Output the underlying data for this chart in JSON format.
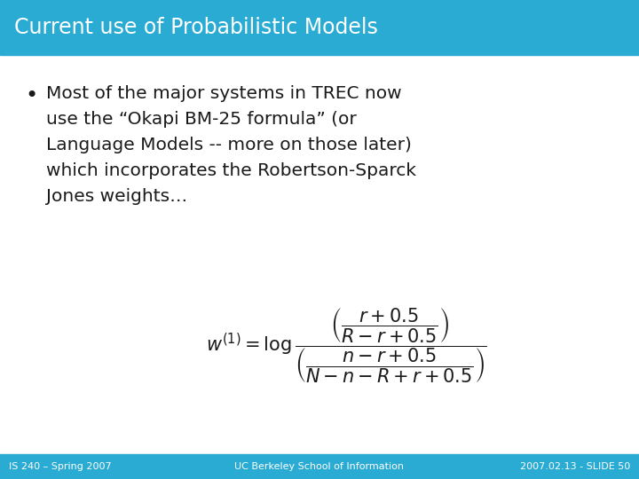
{
  "title": "Current use of Probabilistic Models",
  "title_bg_color": "#29ABD4",
  "title_text_color": "#FFFFFF",
  "body_bg_color": "#FFFFFF",
  "footer_bg_color": "#29ABD4",
  "footer_text_color": "#FFFFFF",
  "footer_left": "IS 240 – Spring 2007",
  "footer_right": "2007.02.13 - SLIDE 50",
  "footer_center": "UC Berkeley School of Information",
  "bullet_text_lines": [
    "Most of the major systems in TREC now",
    "use the “Okapi BM-25 formula” (or",
    "Language Models -- more on those later)",
    "which incorporates the Robertson-Sparck",
    "Jones weights…"
  ],
  "text_color": "#1a1a1a",
  "title_fontsize": 17,
  "bullet_fontsize": 14.5,
  "formula_fontsize": 15,
  "footer_fontsize": 8
}
